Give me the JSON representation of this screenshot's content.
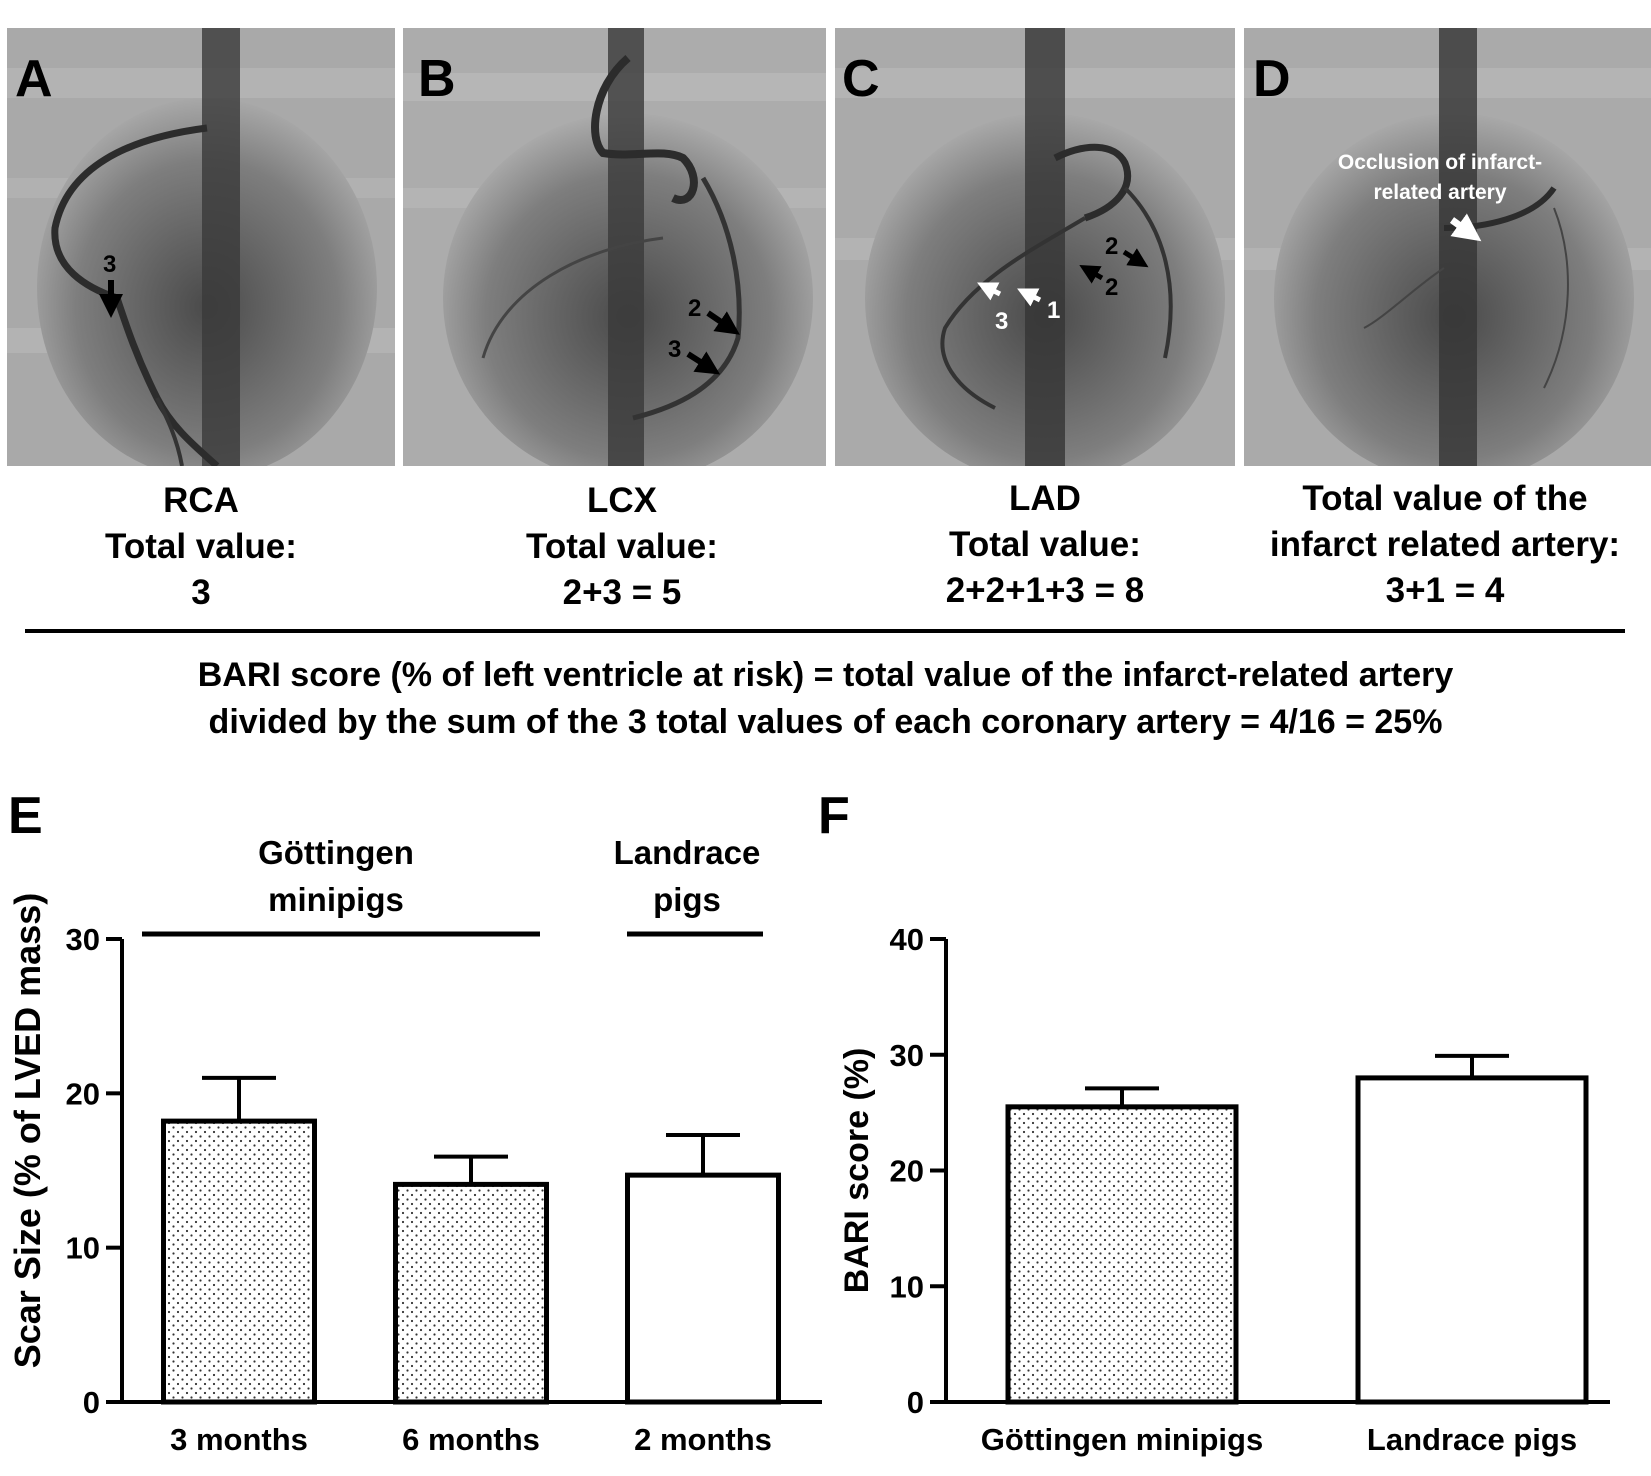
{
  "panels": [
    {
      "letter": "A",
      "artery": "RCA",
      "line2": "Total value:",
      "line3": "3",
      "annotations": [
        "3"
      ]
    },
    {
      "letter": "B",
      "artery": "LCX",
      "line2": "Total value:",
      "line3": "2+3 = 5",
      "annotations": [
        "2",
        "3"
      ]
    },
    {
      "letter": "C",
      "artery": "LAD",
      "line2": "Total value:",
      "line3": "2+2+1+3 = 8",
      "annotations": [
        "2",
        "2",
        "3",
        "1"
      ]
    },
    {
      "letter": "D",
      "artery": "Total value of the",
      "line2": "infarct related artery:",
      "line3": "3+1 = 4",
      "annotations": [
        "Occlusion of infarct-",
        "related artery"
      ]
    }
  ],
  "formula": {
    "line1": "BARI score (% of left ventricle at risk) = total value of the infarct-related artery",
    "line2": "divided by the sum of the 3 total values of each coronary artery = 4/16 = 25%"
  },
  "chart_data": [
    {
      "panel": "E",
      "type": "bar",
      "ylabel": "Scar Size (% of LVED mass)",
      "ylim": [
        0,
        30
      ],
      "yticks": [
        "0",
        "10",
        "20",
        "30"
      ],
      "categories": [
        "3 months",
        "6 months",
        "2 months"
      ],
      "values": [
        18.2,
        14.1,
        14.7
      ],
      "errors": [
        2.8,
        1.8,
        2.6
      ],
      "fills": [
        "dotted",
        "dotted",
        "white"
      ],
      "groups": [
        {
          "line1": "Göttingen",
          "line2": "minipigs",
          "span": [
            0,
            1
          ]
        },
        {
          "line1": "Landrace",
          "line2": "pigs",
          "span": [
            2,
            2
          ]
        }
      ]
    },
    {
      "panel": "F",
      "type": "bar",
      "ylabel": "BARI score (%)",
      "ylim": [
        0,
        40
      ],
      "yticks": [
        "0",
        "10",
        "20",
        "30",
        "40"
      ],
      "categories": [
        "Göttingen minipigs",
        "Landrace pigs"
      ],
      "values": [
        25.5,
        28.0
      ],
      "errors": [
        1.6,
        1.9
      ],
      "fills": [
        "dotted",
        "white"
      ]
    }
  ]
}
